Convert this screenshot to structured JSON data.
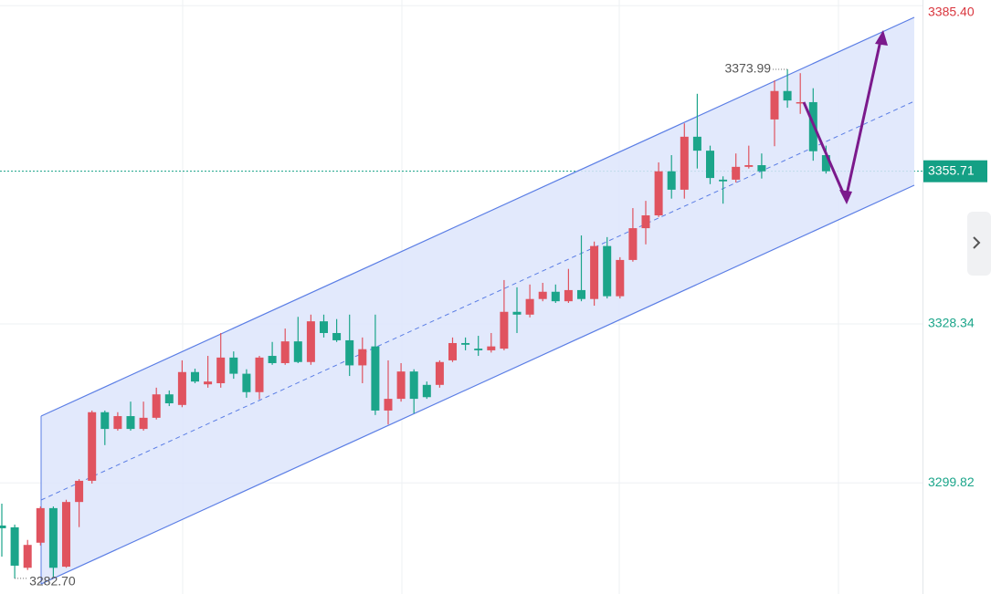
{
  "chart_data": {
    "type": "candlestick",
    "up_color": "#e0535f",
    "down_color": "#1ba58a",
    "ylim": [
      3279.9,
      3386.42
    ],
    "yticks": [
      {
        "value": 3385.4,
        "label": "3385.40"
      },
      {
        "value": 3328.34,
        "label": "3328.34"
      },
      {
        "value": 3299.82,
        "label": "3299.82"
      }
    ],
    "ytick_colors": [
      "#d9363e",
      "#1ba58a",
      "#1ba58a"
    ],
    "grid": true,
    "last_price_color": "#14a085",
    "annotations": [
      {
        "label": "3373.99",
        "value": 3373.99
      },
      {
        "label": "3282.70",
        "value": 3282.7
      }
    ],
    "open": [
      3292.18,
      3291.86,
      3284.6,
      3289.1,
      3295.3,
      3284.8,
      3296.4,
      3300.2,
      3312.5,
      3309.5,
      3311.8,
      3309.5,
      3311.5,
      3315.7,
      3313.8,
      3319.7,
      3317.5,
      3317.7,
      3322.3,
      3319.4,
      3316.1,
      3322.6,
      3321.3,
      3325.2,
      3321.5,
      3328.8,
      3326.7,
      3325.4,
      3320.9,
      3324.3,
      3312.8,
      3314.9,
      3319.8,
      3317.4,
      3317.4,
      3321.8,
      3324.9,
      3323.9,
      3323.6,
      3323.9,
      3330.5,
      3330.0,
      3332.8,
      3334.1,
      3332.4,
      3334.4,
      3332.8,
      3342.3,
      3333.3,
      3339.8,
      3345.5,
      3347.8,
      3355.7,
      3352.4,
      3361.9,
      3359.4,
      3354.2,
      3354.2,
      3356.5,
      3356.8,
      3365.0,
      3370.1,
      3367.9,
      3368.1,
      3358.6
    ],
    "high": [
      3296.1,
      3292.35,
      3289.6,
      3295.6,
      3295.6,
      3296.8,
      3300.5,
      3312.8,
      3312.8,
      3312.5,
      3314.4,
      3314.4,
      3316.9,
      3316.4,
      3321.8,
      3320.3,
      3322.6,
      3326.7,
      3323.4,
      3320.2,
      3322.6,
      3325.1,
      3327.5,
      3329.6,
      3330.0,
      3330.0,
      3329.2,
      3330.0,
      3325.9,
      3330.0,
      3321.8,
      3321.3,
      3320.2,
      3318.0,
      3321.8,
      3325.9,
      3325.9,
      3326.2,
      3326.7,
      3336.2,
      3334.9,
      3335.4,
      3335.7,
      3335.4,
      3338.2,
      3344.2,
      3343.1,
      3343.9,
      3340.3,
      3349.1,
      3350.4,
      3357.3,
      3358.6,
      3364.3,
      3369.6,
      3360.3,
      3354.8,
      3358.9,
      3360.3,
      3358.9,
      3372.0,
      3373.99,
      3373.3,
      3370.6,
      3360.3
    ],
    "low": [
      3286.6,
      3282.7,
      3284.2,
      3288.6,
      3283.0,
      3284.6,
      3291.9,
      3299.7,
      3306.6,
      3309.2,
      3309.2,
      3309.2,
      3311.2,
      3313.6,
      3313.4,
      3317.7,
      3316.9,
      3316.9,
      3318.5,
      3315.1,
      3314.8,
      3321.0,
      3321.0,
      3321.3,
      3321.0,
      3325.9,
      3325.1,
      3319.0,
      3317.7,
      3312.0,
      3310.3,
      3314.4,
      3312.3,
      3314.9,
      3316.9,
      3321.5,
      3323.6,
      3322.6,
      3323.2,
      3323.6,
      3326.7,
      3329.5,
      3332.4,
      3332.1,
      3332.1,
      3332.4,
      3331.6,
      3332.9,
      3332.9,
      3339.5,
      3342.6,
      3347.5,
      3350.8,
      3350.8,
      3356.2,
      3353.4,
      3349.9,
      3353.7,
      3356.2,
      3354.4,
      3360.2,
      3367.1,
      3366.0,
      3357.6,
      3355.3
    ],
    "close": [
      3291.69,
      3284.98,
      3288.7,
      3295.3,
      3284.6,
      3296.4,
      3300.2,
      3312.5,
      3309.5,
      3311.8,
      3309.5,
      3311.5,
      3315.7,
      3314.1,
      3319.7,
      3318.0,
      3318.0,
      3322.3,
      3319.4,
      3316.1,
      3322.3,
      3321.3,
      3325.2,
      3321.5,
      3328.8,
      3326.7,
      3325.4,
      3320.9,
      3323.8,
      3312.8,
      3314.9,
      3319.8,
      3314.9,
      3315.2,
      3321.5,
      3324.9,
      3324.6,
      3323.6,
      3324.3,
      3330.5,
      3330.0,
      3332.8,
      3334.1,
      3332.4,
      3334.4,
      3332.8,
      3342.3,
      3333.3,
      3339.8,
      3345.5,
      3347.8,
      3355.7,
      3352.4,
      3361.9,
      3359.4,
      3354.5,
      3353.9,
      3356.5,
      3356.8,
      3355.7,
      3370.1,
      3368.4,
      3368.1,
      3359.3,
      3355.71
    ]
  }
}
